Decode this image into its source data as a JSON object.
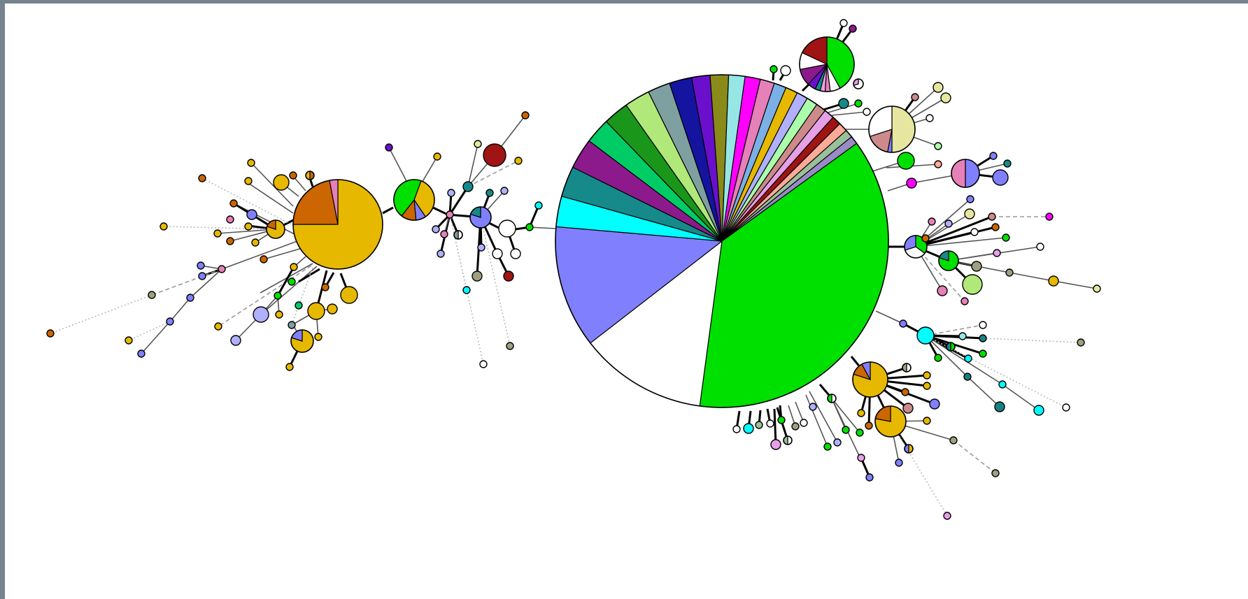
{
  "colors": {
    "frame_border": "#77828f",
    "background": "#ffffff",
    "green": "#00e000",
    "periwinkle": "#8080ff",
    "white": "#ffffff",
    "cyan": "#00ffff",
    "teal": "#168a8a",
    "purple": "#8c1a8c",
    "sea_green": "#00cc66",
    "dark_green": "#1a961a",
    "light_green": "#b0e87a",
    "slate": "#7fa0a0",
    "navy": "#1414a0",
    "violet": "#6a10cc",
    "olive": "#8a8a1a",
    "aqua": "#96e6e6",
    "magenta": "#ff00ff",
    "pink": "#e680b8",
    "sky": "#7ab0e6",
    "gold": "#e6b800",
    "lavender": "#b0b0ff",
    "mint": "#aaffaa",
    "rosy": "#cc8a8a",
    "orchid": "#e6a0e6",
    "crimson": "#a01414",
    "salmon": "#ffaa99",
    "sage": "#9ac09a",
    "mauve": "#9a8ac8",
    "burnt_orange": "#cc6600",
    "khaki": "#e6e6a0",
    "gray_olive": "#a0a080",
    "dark_teal": "#1a8080"
  },
  "network": {
    "main_node_slices": [
      {
        "color": "green",
        "value": 37.5
      },
      {
        "color": "white",
        "value": 12.5
      },
      {
        "color": "periwinkle",
        "value": 12
      },
      {
        "color": "cyan",
        "value": 3
      },
      {
        "color": "teal",
        "value": 3
      },
      {
        "color": "purple",
        "value": 3
      },
      {
        "color": "sea_green",
        "value": 2.5
      },
      {
        "color": "dark_green",
        "value": 2.5
      },
      {
        "color": "light_green",
        "value": 2.5
      },
      {
        "color": "slate",
        "value": 2.2
      },
      {
        "color": "navy",
        "value": 2.2
      },
      {
        "color": "violet",
        "value": 1.8
      },
      {
        "color": "olive",
        "value": 1.8
      },
      {
        "color": "aqua",
        "value": 1.6
      },
      {
        "color": "magenta",
        "value": 1.5
      },
      {
        "color": "pink",
        "value": 1.4
      },
      {
        "color": "sky",
        "value": 1.2
      },
      {
        "color": "gold",
        "value": 1.2
      },
      {
        "color": "lavender",
        "value": 1.1
      },
      {
        "color": "mint",
        "value": 1.1
      },
      {
        "color": "rosy",
        "value": 1
      },
      {
        "color": "orchid",
        "value": 1
      },
      {
        "color": "crimson",
        "value": 0.9
      },
      {
        "color": "salmon",
        "value": 0.9
      },
      {
        "color": "sage",
        "value": 0.8
      },
      {
        "color": "mauve",
        "value": 0.8
      }
    ],
    "left_hub_slices": [
      {
        "color": "gold",
        "value": 75
      },
      {
        "color": "burnt_orange",
        "value": 22
      },
      {
        "color": "pink",
        "value": 3
      }
    ]
  }
}
